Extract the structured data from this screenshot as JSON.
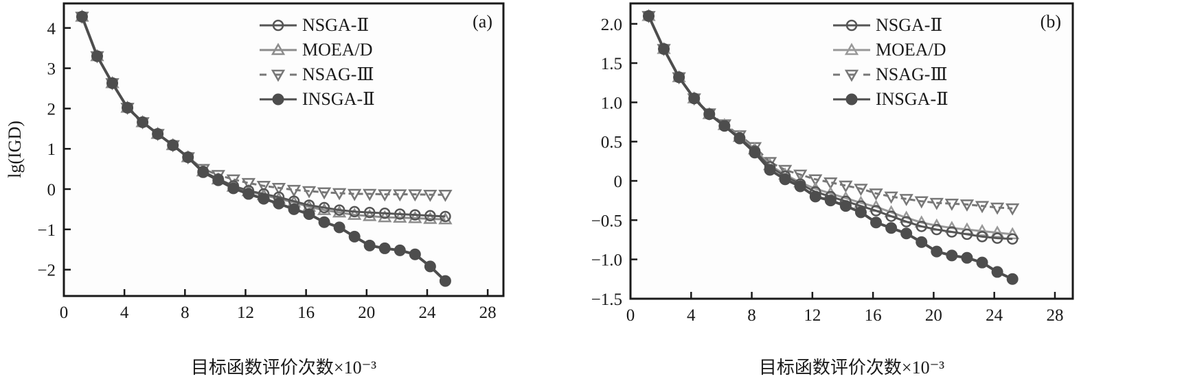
{
  "chart_data": [
    {
      "type": "line",
      "panel_label": "(a)",
      "xlabel": "目标函数评价次数×10⁻³",
      "ylabel": "lg(IGD)",
      "xlim": [
        0,
        29
      ],
      "ylim": [
        -2.6,
        4.6
      ],
      "xticks": [
        0,
        4,
        8,
        12,
        16,
        20,
        24,
        28
      ],
      "xtick_labels": [
        "0",
        "4",
        "8",
        "12",
        "16",
        "20",
        "24",
        "28"
      ],
      "yticks": [
        4,
        3,
        2,
        1,
        0,
        -1,
        -2
      ],
      "ytick_labels": [
        "4",
        "3",
        "2",
        "1",
        "0",
        "−1",
        "−2"
      ],
      "grid": false,
      "legend_position": "top-right",
      "x": [
        1.2,
        2.2,
        3.2,
        4.2,
        5.2,
        6.2,
        7.2,
        8.2,
        9.2,
        10.2,
        11.2,
        12.2,
        13.2,
        14.2,
        15.2,
        16.2,
        17.2,
        18.2,
        19.2,
        20.2,
        21.2,
        22.2,
        23.2,
        24.2,
        25.2
      ],
      "series": [
        {
          "name": "NSGA-Ⅱ",
          "marker": "circle-open",
          "line": "solid",
          "color": "#555555",
          "values": [
            4.28,
            3.3,
            2.63,
            2.02,
            1.66,
            1.37,
            1.09,
            0.79,
            0.44,
            0.25,
            0.08,
            -0.04,
            -0.12,
            -0.2,
            -0.3,
            -0.4,
            -0.46,
            -0.52,
            -0.56,
            -0.58,
            -0.6,
            -0.62,
            -0.64,
            -0.66,
            -0.68
          ]
        },
        {
          "name": "MOEA/D",
          "marker": "triangle-up-open",
          "line": "solid",
          "color": "#8c8c8c",
          "values": [
            4.28,
            3.3,
            2.63,
            2.02,
            1.66,
            1.37,
            1.09,
            0.79,
            0.44,
            0.24,
            0.06,
            -0.05,
            -0.15,
            -0.24,
            -0.33,
            -0.44,
            -0.52,
            -0.58,
            -0.64,
            -0.67,
            -0.7,
            -0.71,
            -0.72,
            -0.74,
            -0.75
          ]
        },
        {
          "name": "NSAG-Ⅲ",
          "marker": "triangle-down-open",
          "line": "dashed",
          "color": "#777777",
          "values": [
            4.28,
            3.3,
            2.63,
            2.02,
            1.66,
            1.37,
            1.09,
            0.79,
            0.5,
            0.35,
            0.24,
            0.15,
            0.08,
            0.03,
            -0.02,
            -0.05,
            -0.08,
            -0.1,
            -0.12,
            -0.12,
            -0.13,
            -0.13,
            -0.13,
            -0.14,
            -0.14
          ]
        },
        {
          "name": "INSGA-Ⅱ",
          "marker": "circle-filled",
          "line": "solid",
          "color": "#4d4d4d",
          "values": [
            4.28,
            3.3,
            2.63,
            2.02,
            1.66,
            1.37,
            1.09,
            0.79,
            0.42,
            0.22,
            0.02,
            -0.12,
            -0.24,
            -0.36,
            -0.5,
            -0.62,
            -0.82,
            -0.95,
            -1.18,
            -1.4,
            -1.47,
            -1.52,
            -1.62,
            -1.92,
            -2.28
          ]
        }
      ]
    },
    {
      "type": "line",
      "panel_label": "(b)",
      "xlabel": "目标函数评价次数×10⁻³",
      "ylabel": "",
      "xlim": [
        0,
        29
      ],
      "ylim": [
        -1.5,
        2.25
      ],
      "xticks": [
        0,
        4,
        8,
        12,
        16,
        20,
        24,
        28
      ],
      "xtick_labels": [
        "0",
        "4",
        "8",
        "12",
        "16",
        "20",
        "24",
        "28"
      ],
      "yticks": [
        2.0,
        1.5,
        1.0,
        0.5,
        0,
        -0.5,
        -1.0,
        -1.5
      ],
      "ytick_labels": [
        "2.0",
        "1.5",
        "1.0",
        "0.5",
        "0",
        "−0.5",
        "−1.0",
        "−1.5"
      ],
      "grid": false,
      "legend_position": "top-right",
      "x": [
        1.2,
        2.2,
        3.2,
        4.2,
        5.2,
        6.2,
        7.2,
        8.2,
        9.2,
        10.2,
        11.2,
        12.2,
        13.2,
        14.2,
        15.2,
        16.2,
        17.2,
        18.2,
        19.2,
        20.2,
        21.2,
        22.2,
        23.2,
        24.2,
        25.2
      ],
      "series": [
        {
          "name": "NSGA-Ⅱ",
          "marker": "circle-open",
          "line": "solid",
          "color": "#555555",
          "values": [
            2.1,
            1.68,
            1.32,
            1.05,
            0.85,
            0.7,
            0.55,
            0.38,
            0.18,
            0.06,
            -0.04,
            -0.14,
            -0.2,
            -0.26,
            -0.32,
            -0.38,
            -0.45,
            -0.52,
            -0.58,
            -0.62,
            -0.65,
            -0.68,
            -0.71,
            -0.73,
            -0.74
          ]
        },
        {
          "name": "MOEA/D",
          "marker": "triangle-up-open",
          "line": "solid",
          "color": "#999999",
          "values": [
            2.1,
            1.68,
            1.32,
            1.05,
            0.85,
            0.71,
            0.56,
            0.4,
            0.2,
            0.08,
            -0.02,
            -0.1,
            -0.16,
            -0.22,
            -0.28,
            -0.33,
            -0.4,
            -0.47,
            -0.53,
            -0.57,
            -0.6,
            -0.62,
            -0.64,
            -0.66,
            -0.68
          ]
        },
        {
          "name": "NSAG-Ⅲ",
          "marker": "triangle-down-open",
          "line": "dashed",
          "color": "#777777",
          "values": [
            2.1,
            1.68,
            1.32,
            1.05,
            0.86,
            0.72,
            0.58,
            0.43,
            0.24,
            0.14,
            0.08,
            0.02,
            -0.02,
            -0.06,
            -0.1,
            -0.16,
            -0.2,
            -0.23,
            -0.26,
            -0.28,
            -0.29,
            -0.3,
            -0.32,
            -0.34,
            -0.35
          ]
        },
        {
          "name": "INSGA-Ⅱ",
          "marker": "circle-filled",
          "line": "solid",
          "color": "#4d4d4d",
          "values": [
            2.1,
            1.68,
            1.32,
            1.05,
            0.85,
            0.7,
            0.54,
            0.36,
            0.14,
            0.02,
            -0.07,
            -0.2,
            -0.25,
            -0.32,
            -0.4,
            -0.53,
            -0.6,
            -0.67,
            -0.78,
            -0.9,
            -0.95,
            -0.98,
            -1.04,
            -1.16,
            -1.25
          ]
        }
      ]
    }
  ]
}
